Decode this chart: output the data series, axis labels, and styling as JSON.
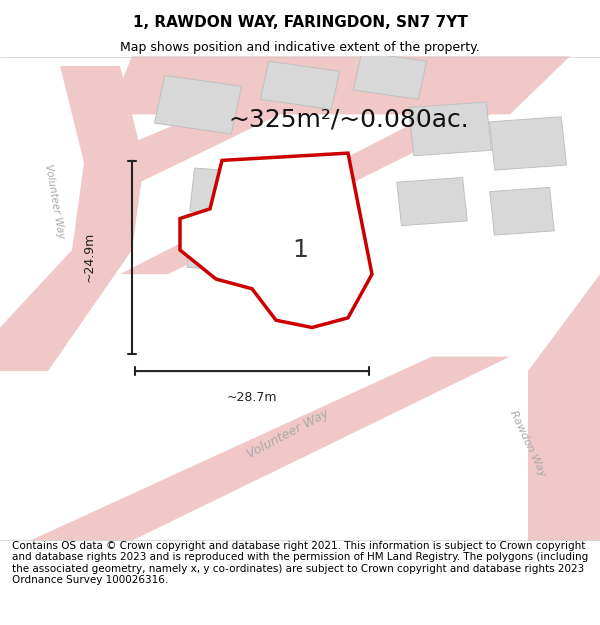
{
  "title": "1, RAWDON WAY, FARINGDON, SN7 7YT",
  "subtitle": "Map shows position and indicative extent of the property.",
  "area_label": "~325m²/~0.080ac.",
  "dim_width": "~28.7m",
  "dim_height": "~24.9m",
  "plot_number": "1",
  "footer": "Contains OS data © Crown copyright and database right 2021. This information is subject to Crown copyright and database rights 2023 and is reproduced with the permission of HM Land Registry. The polygons (including the associated geometry, namely x, y co-ordinates) are subject to Crown copyright and database rights 2023 Ordnance Survey 100026316.",
  "bg_color": "#f2eff0",
  "map_bg": "#f2eff0",
  "road_color": "#f0c8c8",
  "building_color": "#d8d8d8",
  "building_edge": "#c0c0c0",
  "plot_fill": "#ffffff",
  "plot_edge": "#cc0000",
  "plot_edge_width": 2.5,
  "dim_color": "#222222",
  "road_label_color": "#aaaaaa",
  "title_fontsize": 11,
  "subtitle_fontsize": 9,
  "area_fontsize": 18,
  "footer_fontsize": 7.5
}
